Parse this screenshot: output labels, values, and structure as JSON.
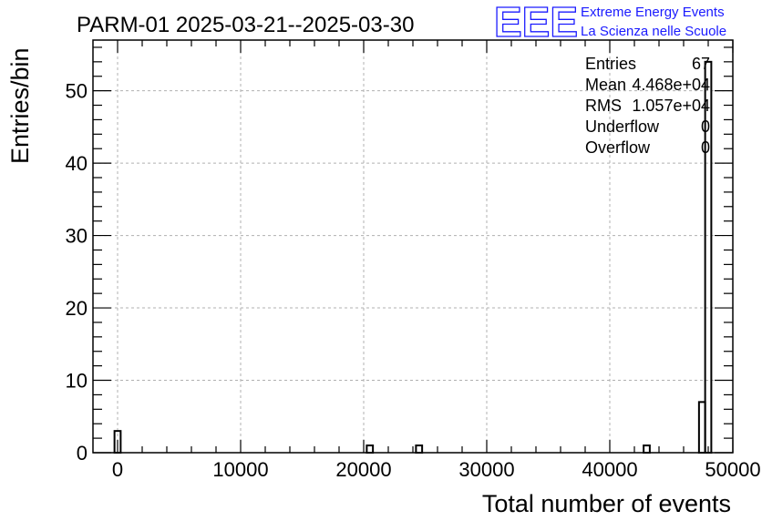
{
  "chart_data": {
    "type": "bar",
    "title": "PARM-01 2025-03-21--2025-03-30",
    "xlabel": "Total number of events",
    "ylabel": "Entries/bin",
    "xlim": [
      -2000,
      50000
    ],
    "ylim": [
      0,
      57
    ],
    "x_ticks": [
      0,
      10000,
      20000,
      30000,
      40000,
      50000
    ],
    "y_ticks": [
      0,
      10,
      20,
      30,
      40,
      50
    ],
    "grid": true,
    "bin_width": 500,
    "bins": [
      {
        "x": 0,
        "count": 3
      },
      {
        "x": 20500,
        "count": 1
      },
      {
        "x": 24500,
        "count": 1
      },
      {
        "x": 43000,
        "count": 1
      },
      {
        "x": 47500,
        "count": 7
      },
      {
        "x": 48000,
        "count": 54
      }
    ],
    "stats": [
      {
        "label": "Entries",
        "value": "67"
      },
      {
        "label": "Mean",
        "value": "4.468e+04"
      },
      {
        "label": "RMS",
        "value": "1.057e+04"
      },
      {
        "label": "Underflow",
        "value": "0"
      },
      {
        "label": "Overflow",
        "value": "0"
      }
    ]
  },
  "logo": {
    "text": "EEE",
    "line1": "Extreme Energy Events",
    "line2": "La Scienza nelle Scuole",
    "color": "#1a1aff"
  }
}
